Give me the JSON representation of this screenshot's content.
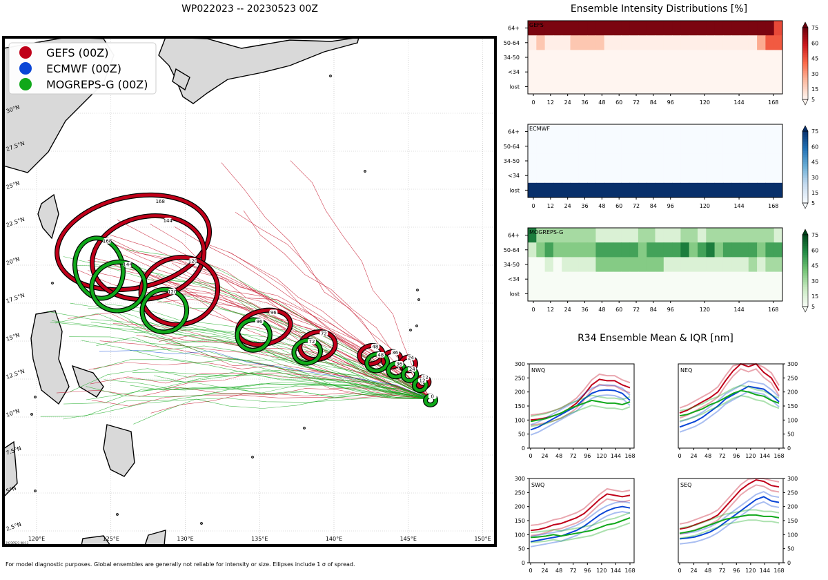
{
  "title": "WP022023 -- 20230523 00Z",
  "legend": [
    {
      "label": "GEFS (00Z)",
      "color": "#c0001a"
    },
    {
      "label": "ECMWF (00Z)",
      "color": "#0a46d6"
    },
    {
      "label": "MOGREPS-G (00Z)",
      "color": "#10a81a"
    }
  ],
  "map": {
    "lon_labels": [
      "120°E",
      "125°E",
      "130°E",
      "135°E",
      "140°E",
      "145°E",
      "150°E"
    ],
    "lat_labels": [
      "2.5°N",
      "5°N",
      "7.5°N",
      "10°N",
      "12.5°N",
      "15°N",
      "17.5°N",
      "20°N",
      "22.5°N",
      "25°N",
      "27.5°N",
      "30°N"
    ],
    "stamp": "20230523 08:13"
  },
  "ellipses": [
    {
      "model": "GEFS",
      "tau": "168",
      "lon": 126.5,
      "lat": 21.5,
      "rlon": 5.2,
      "rlat": 3.0
    },
    {
      "model": "GEFS",
      "tau": "144",
      "lon": 127.5,
      "lat": 20.5,
      "rlon": 3.8,
      "rlat": 2.7
    },
    {
      "model": "GEFS",
      "tau": "120",
      "lon": 129.6,
      "lat": 18.3,
      "rlon": 2.6,
      "rlat": 2.2
    },
    {
      "model": "GEFS",
      "tau": "96",
      "lon": 135.3,
      "lat": 15.9,
      "rlon": 1.8,
      "rlat": 1.1
    },
    {
      "model": "GEFS",
      "tau": "72",
      "lon": 138.9,
      "lat": 14.7,
      "rlon": 1.2,
      "rlat": 0.9
    },
    {
      "model": "GEFS",
      "tau": "48",
      "lon": 142.5,
      "lat": 14.1,
      "rlon": 0.8,
      "rlat": 0.6
    },
    {
      "model": "GEFS",
      "tau": "36",
      "lon": 143.9,
      "lat": 13.8,
      "rlon": 0.6,
      "rlat": 0.5
    },
    {
      "model": "GEFS",
      "tau": "24",
      "lon": 145.0,
      "lat": 13.5,
      "rlon": 0.5,
      "rlat": 0.45
    },
    {
      "model": "GEFS",
      "tau": "12",
      "lon": 146.0,
      "lat": 12.3,
      "rlon": 0.4,
      "rlat": 0.35
    },
    {
      "model": "MOGREPS-G",
      "tau": "168",
      "lon": 124.2,
      "lat": 19.8,
      "rlon": 1.6,
      "rlat": 2.0
    },
    {
      "model": "MOGREPS-G",
      "tau": "144",
      "lon": 125.5,
      "lat": 18.6,
      "rlon": 1.8,
      "rlat": 1.6
    },
    {
      "model": "MOGREPS-G",
      "tau": "120",
      "lon": 128.6,
      "lat": 17.0,
      "rlon": 1.5,
      "rlat": 1.4
    },
    {
      "model": "MOGREPS-G",
      "tau": "96",
      "lon": 134.6,
      "lat": 15.4,
      "rlon": 1.1,
      "rlat": 1.0
    },
    {
      "model": "MOGREPS-G",
      "tau": "72",
      "lon": 138.2,
      "lat": 14.3,
      "rlon": 0.9,
      "rlat": 0.75
    },
    {
      "model": "MOGREPS-G",
      "tau": "48",
      "lon": 142.9,
      "lat": 13.6,
      "rlon": 0.7,
      "rlat": 0.55
    },
    {
      "model": "MOGREPS-G",
      "tau": "36",
      "lon": 144.2,
      "lat": 13.1,
      "rlon": 0.55,
      "rlat": 0.45
    },
    {
      "model": "MOGREPS-G",
      "tau": "24",
      "lon": 145.1,
      "lat": 12.8,
      "rlon": 0.45,
      "rlat": 0.4
    },
    {
      "model": "MOGREPS-G",
      "tau": "12",
      "lon": 145.8,
      "lat": 12.1,
      "rlon": 0.4,
      "rlat": 0.35
    },
    {
      "model": "MOGREPS-G",
      "tau": "0",
      "lon": 146.5,
      "lat": 11.1,
      "rlon": 0.35,
      "rlat": 0.3
    }
  ],
  "intensity": {
    "title": "Ensemble Intensity Distributions [%]",
    "x_ticks": [
      0,
      12,
      24,
      36,
      48,
      60,
      72,
      84,
      96,
      120,
      144,
      168
    ],
    "y_cats": [
      "64+",
      "50-64",
      "34-50",
      "<34",
      "lost"
    ],
    "colorbar_ticks": [
      5,
      15,
      30,
      45,
      60,
      75
    ],
    "panels": [
      {
        "name": "GEFS",
        "cmap": "reds",
        "rows": [
          [
            95,
            95,
            95,
            95,
            95,
            95,
            95,
            95,
            95,
            95,
            95,
            95,
            95,
            95,
            95,
            95,
            95,
            95,
            95,
            95,
            95,
            95,
            95,
            95,
            95,
            95,
            95,
            95,
            95,
            60
          ],
          [
            3,
            20,
            3,
            3,
            3,
            20,
            20,
            20,
            20,
            3,
            3,
            3,
            3,
            3,
            3,
            3,
            3,
            3,
            3,
            3,
            3,
            3,
            3,
            3,
            3,
            3,
            3,
            30,
            55,
            55
          ],
          [
            0,
            0,
            0,
            0,
            0,
            0,
            0,
            0,
            0,
            0,
            0,
            0,
            0,
            0,
            0,
            0,
            0,
            0,
            0,
            0,
            0,
            0,
            0,
            0,
            0,
            0,
            0,
            0,
            0,
            0
          ],
          [
            0,
            0,
            0,
            0,
            0,
            0,
            0,
            0,
            0,
            0,
            0,
            0,
            0,
            0,
            0,
            0,
            0,
            0,
            0,
            0,
            0,
            0,
            0,
            0,
            0,
            0,
            0,
            0,
            0,
            0
          ],
          [
            0,
            0,
            0,
            0,
            0,
            0,
            0,
            0,
            0,
            0,
            0,
            0,
            0,
            0,
            0,
            0,
            0,
            0,
            0,
            0,
            0,
            0,
            0,
            0,
            0,
            0,
            0,
            0,
            0,
            0
          ]
        ]
      },
      {
        "name": "ECMWF",
        "cmap": "blues",
        "rows": [
          [
            0,
            0,
            0,
            0,
            0,
            0,
            0,
            0,
            0,
            0,
            0,
            0,
            0,
            0,
            0,
            0,
            0,
            0,
            0,
            0,
            0,
            0,
            0,
            0,
            0,
            0,
            0,
            0,
            0,
            0
          ],
          [
            0,
            0,
            0,
            0,
            0,
            0,
            0,
            0,
            0,
            0,
            0,
            0,
            0,
            0,
            0,
            0,
            0,
            0,
            0,
            0,
            0,
            0,
            0,
            0,
            0,
            0,
            0,
            0,
            0,
            0
          ],
          [
            0,
            0,
            0,
            0,
            0,
            0,
            0,
            0,
            0,
            0,
            0,
            0,
            0,
            0,
            0,
            0,
            0,
            0,
            0,
            0,
            0,
            0,
            0,
            0,
            0,
            0,
            0,
            0,
            0,
            0
          ],
          [
            0,
            0,
            0,
            0,
            0,
            0,
            0,
            0,
            0,
            0,
            0,
            0,
            0,
            0,
            0,
            0,
            0,
            0,
            0,
            0,
            0,
            0,
            0,
            0,
            0,
            0,
            0,
            0,
            0,
            0
          ],
          [
            100,
            100,
            100,
            100,
            100,
            100,
            100,
            100,
            100,
            100,
            100,
            100,
            100,
            100,
            100,
            100,
            100,
            100,
            100,
            100,
            100,
            100,
            100,
            100,
            100,
            100,
            100,
            100,
            100,
            100
          ]
        ]
      },
      {
        "name": "MOGREPS-G",
        "cmap": "greens",
        "rows": [
          [
            80,
            35,
            35,
            35,
            35,
            35,
            35,
            35,
            15,
            15,
            15,
            15,
            15,
            35,
            35,
            15,
            15,
            15,
            35,
            35,
            15,
            35,
            35,
            35,
            35,
            35,
            35,
            35,
            35,
            15
          ],
          [
            20,
            45,
            65,
            45,
            45,
            45,
            45,
            45,
            65,
            65,
            65,
            65,
            65,
            45,
            65,
            65,
            65,
            65,
            80,
            45,
            65,
            80,
            45,
            65,
            65,
            65,
            65,
            45,
            65,
            65
          ],
          [
            0,
            0,
            15,
            0,
            15,
            15,
            15,
            15,
            45,
            45,
            45,
            45,
            45,
            45,
            45,
            45,
            15,
            15,
            15,
            15,
            15,
            15,
            15,
            15,
            15,
            15,
            35,
            15,
            35,
            35
          ],
          [
            0,
            0,
            0,
            0,
            0,
            0,
            0,
            0,
            0,
            0,
            0,
            0,
            0,
            0,
            0,
            0,
            0,
            0,
            0,
            0,
            0,
            0,
            0,
            0,
            0,
            0,
            0,
            0,
            0,
            0
          ],
          [
            0,
            0,
            0,
            0,
            0,
            0,
            0,
            0,
            0,
            0,
            0,
            0,
            0,
            0,
            0,
            0,
            0,
            0,
            0,
            0,
            0,
            0,
            0,
            0,
            0,
            0,
            0,
            0,
            0,
            0
          ]
        ]
      }
    ]
  },
  "r34": {
    "title": "R34 Ensemble Mean & IQR [nm]",
    "x_ticks": [
      0,
      24,
      48,
      72,
      96,
      120,
      144,
      168
    ],
    "y_ticks": [
      0,
      50,
      100,
      150,
      200,
      250,
      300
    ],
    "panels": [
      {
        "name": "NWQ",
        "series": [
          {
            "model": "GEFS",
            "values": [
              100,
              103,
              108,
              115,
              125,
              140,
              160,
              190,
              225,
              245,
              240,
              240,
              225,
              215
            ]
          },
          {
            "model": "ECMWF",
            "values": [
              65,
              75,
              90,
              105,
              120,
              135,
              150,
              175,
              195,
              205,
              207,
              205,
              195,
              170
            ]
          },
          {
            "model": "MOGREPS-G",
            "values": [
              95,
              100,
              105,
              115,
              125,
              140,
              150,
              160,
              170,
              165,
              160,
              160,
              155,
              165
            ]
          }
        ]
      },
      {
        "name": "NEQ",
        "series": [
          {
            "model": "GEFS",
            "values": [
              125,
              135,
              150,
              165,
              180,
              200,
              240,
              275,
              300,
              290,
              300,
              270,
              250,
              205
            ]
          },
          {
            "model": "ECMWF",
            "values": [
              75,
              85,
              95,
              110,
              130,
              150,
              175,
              190,
              205,
              220,
              215,
              210,
              190,
              165
            ]
          },
          {
            "model": "MOGREPS-G",
            "values": [
              115,
              120,
              130,
              140,
              155,
              165,
              180,
              195,
              205,
              200,
              190,
              185,
              170,
              160
            ]
          }
        ]
      },
      {
        "name": "SWQ",
        "series": [
          {
            "model": "GEFS",
            "values": [
              115,
              118,
              125,
              135,
              140,
              150,
              160,
              175,
              200,
              225,
              245,
              240,
              235,
              240
            ]
          },
          {
            "model": "ECMWF",
            "values": [
              75,
              80,
              85,
              90,
              95,
              105,
              115,
              130,
              150,
              170,
              185,
              195,
              200,
              195
            ]
          },
          {
            "model": "MOGREPS-G",
            "values": [
              90,
              92,
              95,
              100,
              95,
              100,
              105,
              110,
              115,
              125,
              135,
              140,
              150,
              160
            ]
          }
        ]
      },
      {
        "name": "SEQ",
        "series": [
          {
            "model": "GEFS",
            "values": [
              120,
              125,
              135,
              145,
              155,
              170,
              200,
              230,
              260,
              280,
              295,
              290,
              275,
              270
            ]
          },
          {
            "model": "ECMWF",
            "values": [
              85,
              88,
              92,
              100,
              110,
              125,
              145,
              165,
              185,
              205,
              225,
              235,
              220,
              215
            ]
          },
          {
            "model": "MOGREPS-G",
            "values": [
              105,
              110,
              115,
              125,
              135,
              145,
              155,
              160,
              165,
              170,
              170,
              165,
              165,
              160
            ]
          }
        ]
      }
    ]
  },
  "footnote": "For model diagnostic purposes. Global ensembles are generally not reliable for intensity or size. Ellipses include 1 σ of spread."
}
